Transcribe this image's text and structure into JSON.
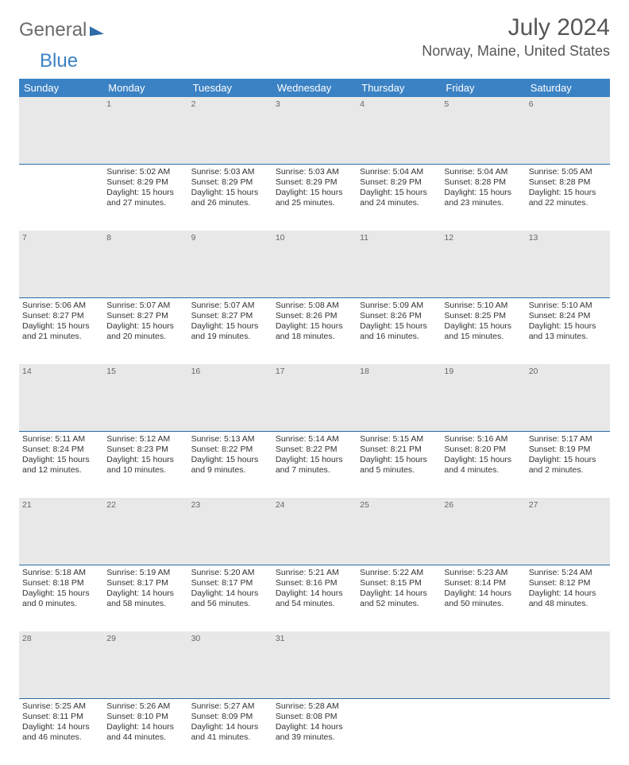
{
  "brand": {
    "word1": "General",
    "word2": "Blue"
  },
  "title": "July 2024",
  "location": "Norway, Maine, United States",
  "colors": {
    "header_bg": "#3b82c4",
    "daynum_bg": "#e8e8e8",
    "row_border": "#2d6ca8",
    "text": "#333333"
  },
  "weekdays": [
    "Sunday",
    "Monday",
    "Tuesday",
    "Wednesday",
    "Thursday",
    "Friday",
    "Saturday"
  ],
  "weeks": [
    {
      "nums": [
        "",
        "1",
        "2",
        "3",
        "4",
        "5",
        "6"
      ],
      "cells": [
        null,
        {
          "sunrise": "Sunrise: 5:02 AM",
          "sunset": "Sunset: 8:29 PM",
          "day1": "Daylight: 15 hours",
          "day2": "and 27 minutes."
        },
        {
          "sunrise": "Sunrise: 5:03 AM",
          "sunset": "Sunset: 8:29 PM",
          "day1": "Daylight: 15 hours",
          "day2": "and 26 minutes."
        },
        {
          "sunrise": "Sunrise: 5:03 AM",
          "sunset": "Sunset: 8:29 PM",
          "day1": "Daylight: 15 hours",
          "day2": "and 25 minutes."
        },
        {
          "sunrise": "Sunrise: 5:04 AM",
          "sunset": "Sunset: 8:29 PM",
          "day1": "Daylight: 15 hours",
          "day2": "and 24 minutes."
        },
        {
          "sunrise": "Sunrise: 5:04 AM",
          "sunset": "Sunset: 8:28 PM",
          "day1": "Daylight: 15 hours",
          "day2": "and 23 minutes."
        },
        {
          "sunrise": "Sunrise: 5:05 AM",
          "sunset": "Sunset: 8:28 PM",
          "day1": "Daylight: 15 hours",
          "day2": "and 22 minutes."
        }
      ]
    },
    {
      "nums": [
        "7",
        "8",
        "9",
        "10",
        "11",
        "12",
        "13"
      ],
      "cells": [
        {
          "sunrise": "Sunrise: 5:06 AM",
          "sunset": "Sunset: 8:27 PM",
          "day1": "Daylight: 15 hours",
          "day2": "and 21 minutes."
        },
        {
          "sunrise": "Sunrise: 5:07 AM",
          "sunset": "Sunset: 8:27 PM",
          "day1": "Daylight: 15 hours",
          "day2": "and 20 minutes."
        },
        {
          "sunrise": "Sunrise: 5:07 AM",
          "sunset": "Sunset: 8:27 PM",
          "day1": "Daylight: 15 hours",
          "day2": "and 19 minutes."
        },
        {
          "sunrise": "Sunrise: 5:08 AM",
          "sunset": "Sunset: 8:26 PM",
          "day1": "Daylight: 15 hours",
          "day2": "and 18 minutes."
        },
        {
          "sunrise": "Sunrise: 5:09 AM",
          "sunset": "Sunset: 8:26 PM",
          "day1": "Daylight: 15 hours",
          "day2": "and 16 minutes."
        },
        {
          "sunrise": "Sunrise: 5:10 AM",
          "sunset": "Sunset: 8:25 PM",
          "day1": "Daylight: 15 hours",
          "day2": "and 15 minutes."
        },
        {
          "sunrise": "Sunrise: 5:10 AM",
          "sunset": "Sunset: 8:24 PM",
          "day1": "Daylight: 15 hours",
          "day2": "and 13 minutes."
        }
      ]
    },
    {
      "nums": [
        "14",
        "15",
        "16",
        "17",
        "18",
        "19",
        "20"
      ],
      "cells": [
        {
          "sunrise": "Sunrise: 5:11 AM",
          "sunset": "Sunset: 8:24 PM",
          "day1": "Daylight: 15 hours",
          "day2": "and 12 minutes."
        },
        {
          "sunrise": "Sunrise: 5:12 AM",
          "sunset": "Sunset: 8:23 PM",
          "day1": "Daylight: 15 hours",
          "day2": "and 10 minutes."
        },
        {
          "sunrise": "Sunrise: 5:13 AM",
          "sunset": "Sunset: 8:22 PM",
          "day1": "Daylight: 15 hours",
          "day2": "and 9 minutes."
        },
        {
          "sunrise": "Sunrise: 5:14 AM",
          "sunset": "Sunset: 8:22 PM",
          "day1": "Daylight: 15 hours",
          "day2": "and 7 minutes."
        },
        {
          "sunrise": "Sunrise: 5:15 AM",
          "sunset": "Sunset: 8:21 PM",
          "day1": "Daylight: 15 hours",
          "day2": "and 5 minutes."
        },
        {
          "sunrise": "Sunrise: 5:16 AM",
          "sunset": "Sunset: 8:20 PM",
          "day1": "Daylight: 15 hours",
          "day2": "and 4 minutes."
        },
        {
          "sunrise": "Sunrise: 5:17 AM",
          "sunset": "Sunset: 8:19 PM",
          "day1": "Daylight: 15 hours",
          "day2": "and 2 minutes."
        }
      ]
    },
    {
      "nums": [
        "21",
        "22",
        "23",
        "24",
        "25",
        "26",
        "27"
      ],
      "cells": [
        {
          "sunrise": "Sunrise: 5:18 AM",
          "sunset": "Sunset: 8:18 PM",
          "day1": "Daylight: 15 hours",
          "day2": "and 0 minutes."
        },
        {
          "sunrise": "Sunrise: 5:19 AM",
          "sunset": "Sunset: 8:17 PM",
          "day1": "Daylight: 14 hours",
          "day2": "and 58 minutes."
        },
        {
          "sunrise": "Sunrise: 5:20 AM",
          "sunset": "Sunset: 8:17 PM",
          "day1": "Daylight: 14 hours",
          "day2": "and 56 minutes."
        },
        {
          "sunrise": "Sunrise: 5:21 AM",
          "sunset": "Sunset: 8:16 PM",
          "day1": "Daylight: 14 hours",
          "day2": "and 54 minutes."
        },
        {
          "sunrise": "Sunrise: 5:22 AM",
          "sunset": "Sunset: 8:15 PM",
          "day1": "Daylight: 14 hours",
          "day2": "and 52 minutes."
        },
        {
          "sunrise": "Sunrise: 5:23 AM",
          "sunset": "Sunset: 8:14 PM",
          "day1": "Daylight: 14 hours",
          "day2": "and 50 minutes."
        },
        {
          "sunrise": "Sunrise: 5:24 AM",
          "sunset": "Sunset: 8:12 PM",
          "day1": "Daylight: 14 hours",
          "day2": "and 48 minutes."
        }
      ]
    },
    {
      "nums": [
        "28",
        "29",
        "30",
        "31",
        "",
        "",
        ""
      ],
      "cells": [
        {
          "sunrise": "Sunrise: 5:25 AM",
          "sunset": "Sunset: 8:11 PM",
          "day1": "Daylight: 14 hours",
          "day2": "and 46 minutes."
        },
        {
          "sunrise": "Sunrise: 5:26 AM",
          "sunset": "Sunset: 8:10 PM",
          "day1": "Daylight: 14 hours",
          "day2": "and 44 minutes."
        },
        {
          "sunrise": "Sunrise: 5:27 AM",
          "sunset": "Sunset: 8:09 PM",
          "day1": "Daylight: 14 hours",
          "day2": "and 41 minutes."
        },
        {
          "sunrise": "Sunrise: 5:28 AM",
          "sunset": "Sunset: 8:08 PM",
          "day1": "Daylight: 14 hours",
          "day2": "and 39 minutes."
        },
        null,
        null,
        null
      ]
    }
  ]
}
